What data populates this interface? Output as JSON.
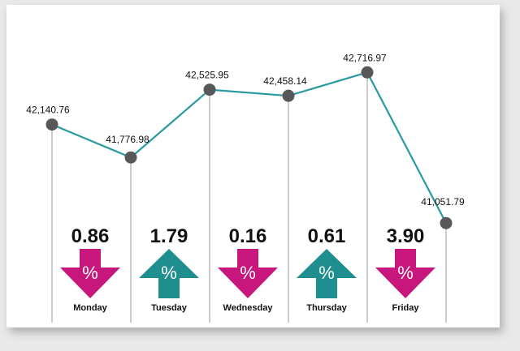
{
  "chart_data": {
    "type": "line",
    "categories": [
      "Monday",
      "Tuesday",
      "Wednesday",
      "Thursday",
      "Friday",
      ""
    ],
    "values": [
      42140.76,
      41776.98,
      42525.95,
      42458.14,
      42716.97,
      41051.79
    ],
    "value_labels": [
      "42,140.76",
      "41,776.98",
      "42,525.95",
      "42,458.14",
      "42,716.97",
      "41,051.79"
    ],
    "ylim": [
      41000,
      42800
    ],
    "grid": false,
    "changes": [
      {
        "day": "Monday",
        "pct": "0.86",
        "direction": "down"
      },
      {
        "day": "Tuesday",
        "pct": "1.79",
        "direction": "up"
      },
      {
        "day": "Wednesday",
        "pct": "0.16",
        "direction": "down"
      },
      {
        "day": "Thursday",
        "pct": "0.61",
        "direction": "up"
      },
      {
        "day": "Friday",
        "pct": "3.90",
        "direction": "down"
      }
    ]
  },
  "symbols": {
    "percent": "%"
  },
  "colors": {
    "line": "#2a9aa0",
    "marker": "#58585a",
    "guide": "#9a9a9a",
    "down": "#c8177c",
    "up": "#1e8f8e"
  }
}
